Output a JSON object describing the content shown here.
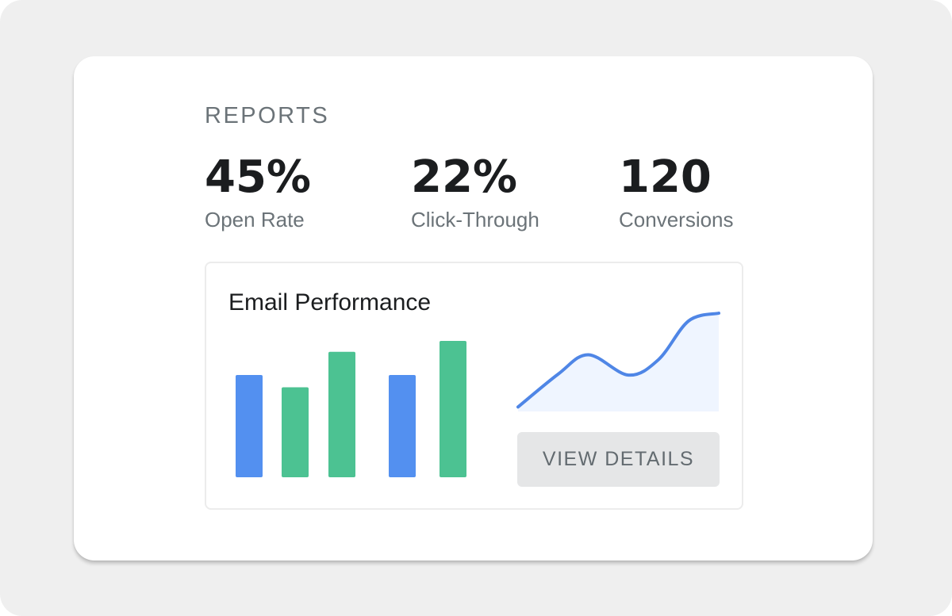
{
  "reports": {
    "title": "REPORTS",
    "stats": [
      {
        "value": "45%",
        "label": "Open Rate"
      },
      {
        "value": "22%",
        "label": "Click-Through"
      },
      {
        "value": "120",
        "label": "Conversions"
      }
    ]
  },
  "panel": {
    "title": "Email Performance",
    "button_label": "VIEW DETAILS"
  },
  "colors": {
    "blue": "#5390f0",
    "green": "#4cc292",
    "line": "#4f86e6",
    "area": "#eff5ff"
  },
  "chart_data": [
    {
      "type": "bar",
      "title": "",
      "xlabel": "",
      "ylabel": "",
      "ylim": [
        0,
        1
      ],
      "values": [
        0.75,
        0.66,
        0.92,
        0.75,
        1.0
      ],
      "bar_colors": [
        "blue",
        "green",
        "green",
        "blue",
        "green"
      ]
    },
    {
      "type": "area",
      "title": "",
      "xlabel": "",
      "ylabel": "",
      "ylim": [
        0,
        1
      ],
      "x": [
        0,
        0.2,
        0.35,
        0.55,
        0.7,
        0.85,
        1.0
      ],
      "y": [
        0.03,
        0.37,
        0.57,
        0.36,
        0.52,
        0.92,
        1.0
      ]
    }
  ]
}
